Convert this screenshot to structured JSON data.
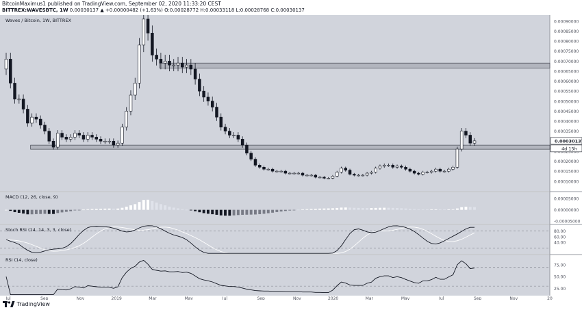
{
  "header": {
    "line1": "BitcoinMaximus1 published on TradingView.com, September 02, 2020 11:33:20 CEST",
    "author": "BitcoinMaximus1",
    "line2_prefix": "BITTREX:WAVESBTC, 1W",
    "line2_values": "0.00030137 ▲ +0.00000482 (+1.63%) O:0.00028772 H:0.00033118 L:0.00028768 C:0.00030137"
  },
  "footer": {
    "brand": "TradingView"
  },
  "colors": {
    "background": "#d1d4dc",
    "up_candle": "#ffffff",
    "down_candle": "#131722",
    "zone": "#b2b5be",
    "zone_border": "#434651",
    "rsi_line": "#131722",
    "stoch_k": "#131722",
    "stoch_d": "#ffffff"
  },
  "chart_data": [
    {
      "type": "candlestick",
      "title": "Waves / Bitcoin, 1W, BITTREX",
      "y_ticks": [
        "0.00090000",
        "0.00085000",
        "0.00080000",
        "0.00075000",
        "0.00070000",
        "0.00065000",
        "0.00060000",
        "0.00055000",
        "0.00050000",
        "0.00045000",
        "0.00040000",
        "0.00035000",
        "0.00030000",
        "0.00025000",
        "0.00020000",
        "0.00015000",
        "0.00010000"
      ],
      "ylim": [
        6.5e-05,
        0.00093
      ],
      "last_price_label": "0.00030137",
      "countdown_label": "4d 15h",
      "x_ticks": [
        "Jul",
        "Sep",
        "Nov",
        "2019",
        "Mar",
        "May",
        "Jul",
        "Sep",
        "Nov",
        "2020",
        "Mar",
        "May",
        "Jul",
        "Sep",
        "Nov",
        "20"
      ],
      "zones": [
        {
          "from": 0.000665,
          "to": 0.00069,
          "start_week": 36
        },
        {
          "from": 0.000265,
          "to": 0.00028,
          "start_week": 6
        }
      ],
      "closes": [
        0.00071,
        0.00059,
        0.00051,
        0.00051,
        0.00046,
        0.00039,
        0.00042,
        0.00041,
        0.00038,
        0.00035,
        0.0003,
        0.00027,
        0.00034,
        0.00032,
        0.00031,
        0.00032,
        0.00034,
        0.00033,
        0.00031,
        0.00033,
        0.00032,
        0.00031,
        0.0003,
        0.0003,
        0.0003,
        0.00028,
        0.00029,
        0.00037,
        0.00045,
        0.00053,
        0.00059,
        0.00078,
        0.00091,
        0.00084,
        0.00073,
        0.00071,
        0.00069,
        0.0007,
        0.00068,
        0.00068,
        0.00069,
        0.00067,
        0.00068,
        0.00066,
        0.00061,
        0.00055,
        0.00052,
        0.0005,
        0.00047,
        0.00042,
        0.00037,
        0.00035,
        0.00033,
        0.00033,
        0.00031,
        0.00028,
        0.00024,
        0.00021,
        0.00018,
        0.00017,
        0.00016,
        0.00016,
        0.00015,
        0.00015,
        0.00015,
        0.00014,
        0.00014,
        0.00014,
        0.00014,
        0.00013,
        0.00013,
        0.00013,
        0.00012,
        0.00012,
        0.000115,
        0.000115,
        0.000125,
        0.000145,
        0.000165,
        0.000155,
        0.000135,
        0.00013,
        0.00013,
        0.00013,
        0.00014,
        0.000145,
        0.000165,
        0.000175,
        0.00018,
        0.00018,
        0.00017,
        0.000175,
        0.00017,
        0.00016,
        0.00015,
        0.00014,
        0.000135,
        0.000145,
        0.000145,
        0.00015,
        0.00016,
        0.00015,
        0.00015,
        0.00016,
        0.00017,
        0.00026,
        0.00035,
        0.00033,
        0.00029,
        0.00030137
      ]
    },
    {
      "type": "bar",
      "title": "MACD (12, 26, close, 9)",
      "y_ticks": [
        "0.00005000",
        "0.00000000",
        "-0.00005000"
      ],
      "ylim": [
        -6.2e-05,
        7.8e-05
      ]
    },
    {
      "type": "line",
      "title": "Stoch RSI (14, 14, 3, 3, close)",
      "y_ticks": [
        "80.00",
        "60.00",
        "40.00"
      ],
      "ylim": [
        0,
        100
      ],
      "bands": [
        80,
        20
      ]
    },
    {
      "type": "line",
      "title": "RSI (14, close)",
      "y_ticks": [
        "75.00",
        "50.00",
        "25.00"
      ],
      "ylim": [
        10,
        95
      ],
      "bands": [
        70,
        30
      ]
    }
  ]
}
